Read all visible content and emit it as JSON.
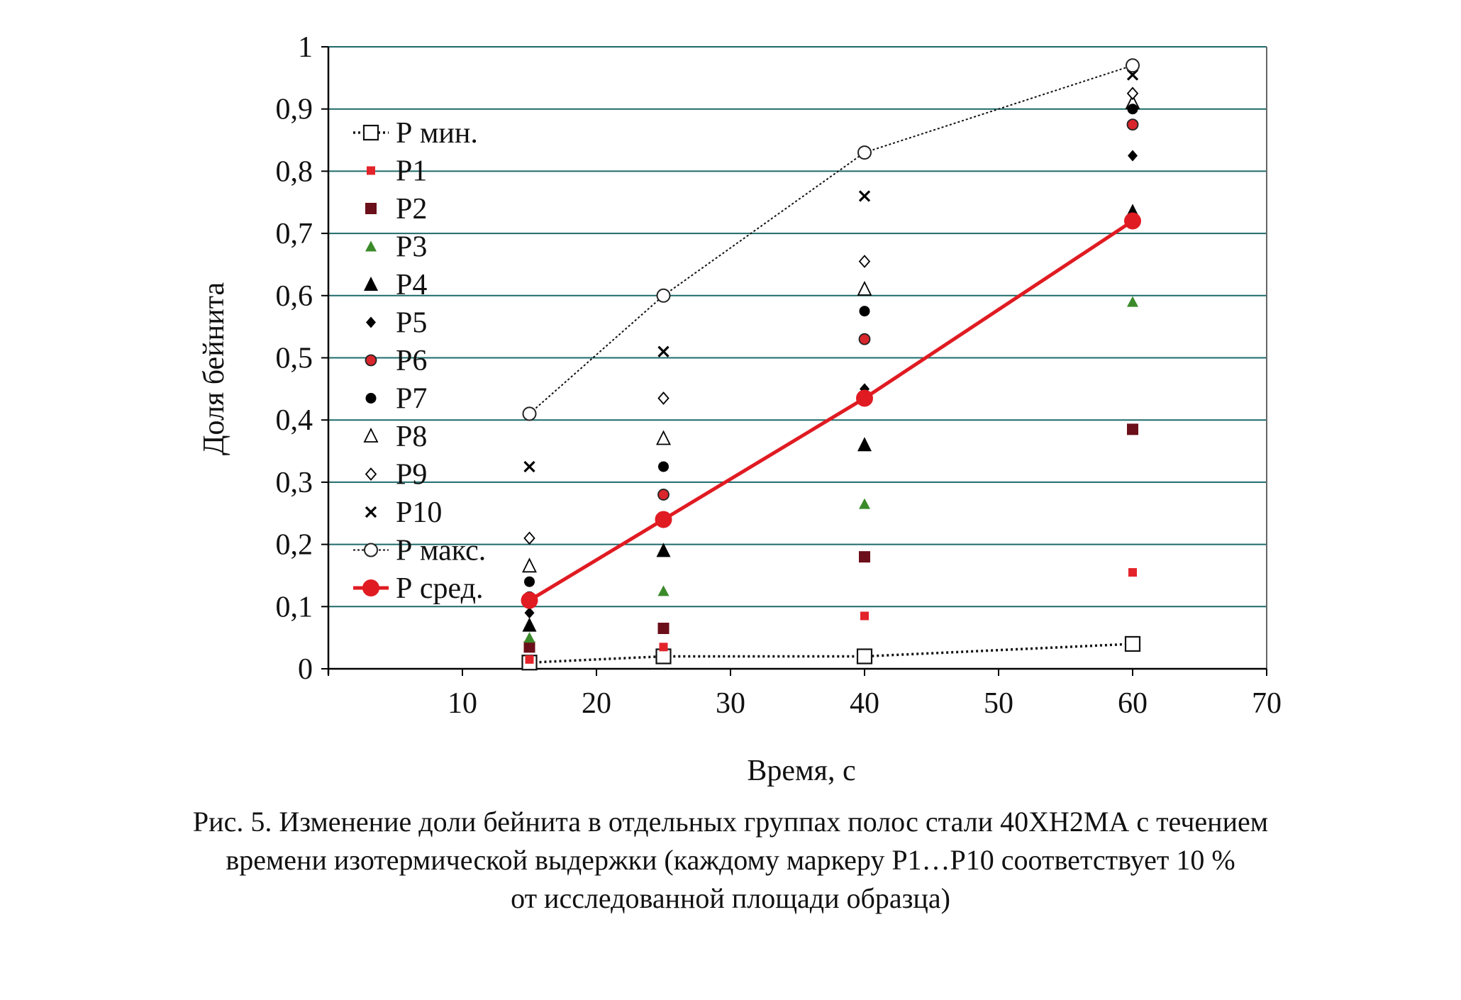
{
  "chart_data": {
    "type": "scatter",
    "xlabel": "Время, с",
    "ylabel": "Доля бейнита",
    "xlim": [
      0,
      70
    ],
    "ylim": [
      0,
      1
    ],
    "x_ticks": [
      "10",
      "20",
      "30",
      "40",
      "50",
      "60",
      "70"
    ],
    "y_ticks": [
      "0",
      "0,1",
      "0,2",
      "0,3",
      "0,4",
      "0,5",
      "0,6",
      "0,7",
      "0,8",
      "0,9",
      "1"
    ],
    "grid": "horizontal",
    "legend_position": "left",
    "series": [
      {
        "name": "Р мин.",
        "marker": "square-open",
        "line": "dotted-thick",
        "color": "#111111",
        "x": [
          15,
          25,
          40,
          60
        ],
        "y": [
          0.01,
          0.02,
          0.02,
          0.04
        ]
      },
      {
        "name": "Р1",
        "marker": "square-small",
        "line": "none",
        "color": "#e3242b",
        "x": [
          15,
          25,
          40,
          60
        ],
        "y": [
          0.015,
          0.035,
          0.085,
          0.155
        ]
      },
      {
        "name": "Р2",
        "marker": "square",
        "line": "none",
        "color": "#6b0f1a",
        "x": [
          15,
          25,
          40,
          60
        ],
        "y": [
          0.035,
          0.065,
          0.18,
          0.385
        ]
      },
      {
        "name": "Р3",
        "marker": "triangle-small",
        "line": "none",
        "color": "#3a8a2a",
        "x": [
          15,
          25,
          40,
          60
        ],
        "y": [
          0.05,
          0.125,
          0.265,
          0.59
        ]
      },
      {
        "name": "Р4",
        "marker": "triangle",
        "line": "none",
        "color": "#000000",
        "x": [
          15,
          25,
          40,
          60
        ],
        "y": [
          0.07,
          0.19,
          0.36,
          0.735
        ]
      },
      {
        "name": "Р5",
        "marker": "diamond",
        "line": "none",
        "color": "#000000",
        "x": [
          15,
          25,
          40,
          60
        ],
        "y": [
          0.09,
          0.235,
          0.45,
          0.825
        ]
      },
      {
        "name": "Р6",
        "marker": "circle-red",
        "line": "none",
        "color": "#d8262c",
        "x": [
          15,
          25,
          40,
          60
        ],
        "y": [
          0.115,
          0.28,
          0.53,
          0.875
        ]
      },
      {
        "name": "Р7",
        "marker": "circle",
        "line": "none",
        "color": "#000000",
        "x": [
          15,
          25,
          40,
          60
        ],
        "y": [
          0.14,
          0.325,
          0.575,
          0.9
        ]
      },
      {
        "name": "Р8",
        "marker": "triangle-open",
        "line": "none",
        "color": "#000000",
        "x": [
          15,
          25,
          40,
          60
        ],
        "y": [
          0.165,
          0.37,
          0.61,
          0.91
        ]
      },
      {
        "name": "Р9",
        "marker": "diamond-open",
        "line": "none",
        "color": "#000000",
        "x": [
          15,
          25,
          40,
          60
        ],
        "y": [
          0.21,
          0.435,
          0.655,
          0.925
        ]
      },
      {
        "name": "Р10",
        "marker": "cross",
        "line": "none",
        "color": "#000000",
        "x": [
          15,
          25,
          40,
          60
        ],
        "y": [
          0.325,
          0.51,
          0.76,
          0.955
        ]
      },
      {
        "name": "Р макс.",
        "marker": "circle-open",
        "line": "dotted-thin",
        "color": "#111111",
        "x": [
          15,
          25,
          40,
          60
        ],
        "y": [
          0.41,
          0.6,
          0.83,
          0.97
        ]
      },
      {
        "name": "Р сред.",
        "marker": "circle-big",
        "line": "solid",
        "color": "#e01b22",
        "x": [
          15,
          25,
          40,
          60
        ],
        "y": [
          0.11,
          0.24,
          0.435,
          0.72
        ]
      }
    ]
  },
  "caption": {
    "line1": "Рис. 5. Изменение доли бейнита в отдельных группах полос стали 40ХН2МА с течением",
    "line2": "времени изотермической выдержки (каждому маркеру Р1…Р10 соответствует 10 %",
    "line3": "от исследованной площади образца)"
  }
}
